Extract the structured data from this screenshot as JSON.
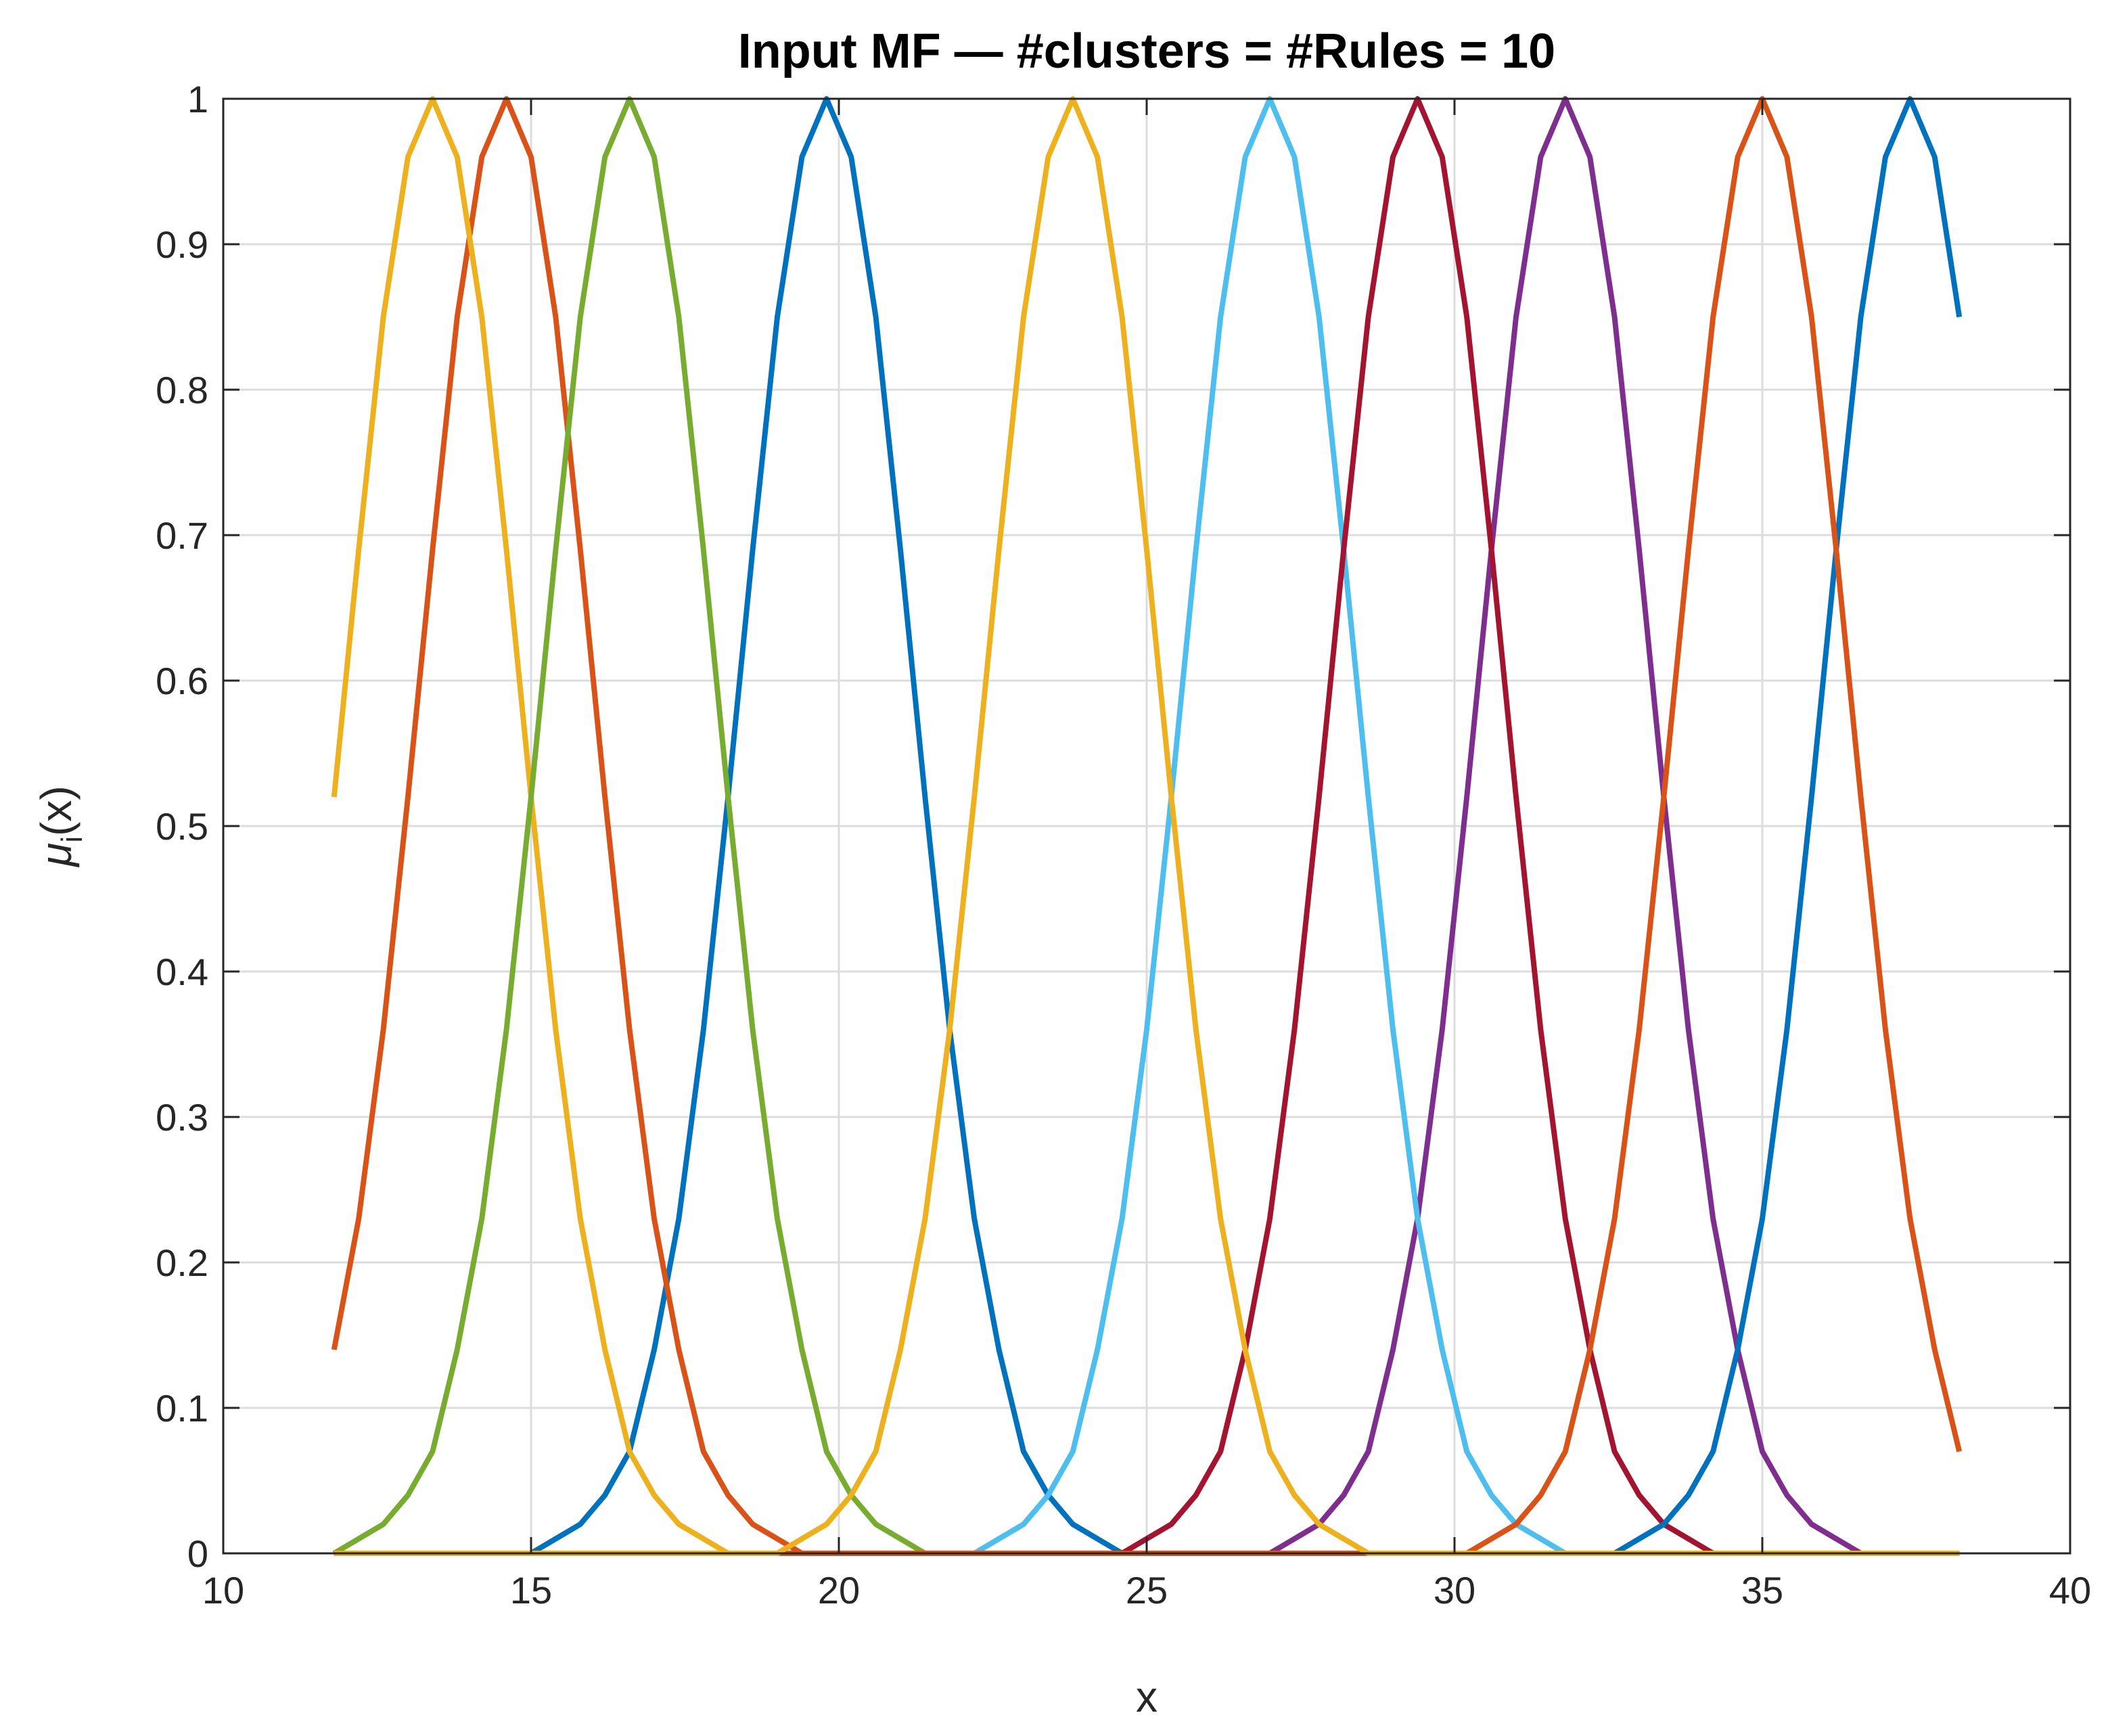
{
  "chart_data": {
    "type": "line",
    "title": "Input MF — #clusters = #Rules = 10",
    "xlabel": "x",
    "ylabel": {
      "symbol": "μ",
      "subscript": "i",
      "rest": "(x)"
    },
    "xlim": [
      10,
      40
    ],
    "xticks": [
      10,
      15,
      20,
      25,
      30,
      35,
      40
    ],
    "ylim": [
      0,
      1
    ],
    "yticks": [
      0,
      0.1,
      0.2,
      0.3,
      0.4,
      0.5,
      0.6,
      0.7,
      0.8,
      0.9,
      1
    ],
    "grid": true,
    "x": [
      11.8,
      12.2,
      12.6,
      13,
      13.4,
      13.8,
      14.2,
      14.6,
      15,
      15.4,
      15.8,
      16.2,
      16.6,
      17,
      17.4,
      17.8,
      18.2,
      18.6,
      19,
      19.4,
      19.8,
      20.2,
      20.6,
      21,
      21.4,
      21.8,
      22.2,
      22.6,
      23,
      23.4,
      23.8,
      24.2,
      24.6,
      25,
      25.4,
      25.8,
      26.2,
      26.6,
      27,
      27.4,
      27.8,
      28.2,
      28.6,
      29,
      29.4,
      29.8,
      30.2,
      30.6,
      31,
      31.4,
      31.8,
      32.2,
      32.6,
      33,
      33.4,
      33.8,
      34.2,
      34.6,
      35,
      35.4,
      35.8,
      36.2,
      36.6,
      37,
      37.4,
      37.8,
      38.2
    ],
    "series": [
      {
        "color": "#0072BD",
        "values": [
          0,
          0,
          0,
          0,
          0,
          0,
          0,
          0,
          0,
          0.01,
          0.02,
          0.04,
          0.07,
          0.14,
          0.23,
          0.36,
          0.52,
          0.69,
          0.85,
          0.96,
          1,
          0.96,
          0.85,
          0.69,
          0.52,
          0.36,
          0.23,
          0.14,
          0.07,
          0.04,
          0.02,
          0.01,
          0,
          0,
          0,
          0,
          0,
          0,
          0,
          0,
          0,
          0,
          0,
          0,
          0,
          0,
          0,
          0,
          0,
          0,
          0,
          0,
          0,
          0,
          0,
          0,
          0,
          0,
          0,
          0,
          0,
          0,
          0,
          0,
          0,
          0,
          0
        ]
      },
      {
        "color": "#D95319",
        "values": [
          0.14,
          0.23,
          0.36,
          0.52,
          0.69,
          0.85,
          0.96,
          1,
          0.96,
          0.85,
          0.69,
          0.52,
          0.36,
          0.23,
          0.14,
          0.07,
          0.04,
          0.02,
          0.01,
          0,
          0,
          0,
          0,
          0,
          0,
          0,
          0,
          0,
          0,
          0,
          0,
          0,
          0,
          0,
          0,
          0,
          0,
          0,
          0,
          0,
          0,
          0,
          0,
          0,
          0,
          0,
          0,
          0,
          0,
          0,
          0,
          0,
          0,
          0,
          0,
          0,
          0,
          0,
          0,
          0,
          0,
          0,
          0,
          0,
          0,
          0,
          0
        ]
      },
      {
        "color": "#EDB120",
        "values": [
          0.52,
          0.69,
          0.85,
          0.96,
          1,
          0.96,
          0.85,
          0.69,
          0.52,
          0.36,
          0.23,
          0.14,
          0.07,
          0.04,
          0.02,
          0.01,
          0,
          0,
          0,
          0,
          0,
          0,
          0,
          0,
          0,
          0,
          0,
          0,
          0,
          0,
          0,
          0,
          0,
          0,
          0,
          0,
          0,
          0,
          0,
          0,
          0,
          0,
          0,
          0,
          0,
          0,
          0,
          0,
          0,
          0,
          0,
          0,
          0,
          0,
          0,
          0,
          0,
          0,
          0,
          0,
          0,
          0,
          0,
          0,
          0,
          0,
          0
        ]
      },
      {
        "color": "#7E2F8E",
        "values": [
          0,
          0,
          0,
          0,
          0,
          0,
          0,
          0,
          0,
          0,
          0,
          0,
          0,
          0,
          0,
          0,
          0,
          0,
          0,
          0,
          0,
          0,
          0,
          0,
          0,
          0,
          0,
          0,
          0,
          0,
          0,
          0,
          0,
          0,
          0,
          0,
          0,
          0,
          0,
          0.01,
          0.02,
          0.04,
          0.07,
          0.14,
          0.23,
          0.36,
          0.52,
          0.69,
          0.85,
          0.96,
          1,
          0.96,
          0.85,
          0.69,
          0.52,
          0.36,
          0.23,
          0.14,
          0.07,
          0.04,
          0.02,
          0.01,
          0,
          0,
          0,
          0,
          0
        ]
      },
      {
        "color": "#77AC30",
        "values": [
          0,
          0.01,
          0.02,
          0.04,
          0.07,
          0.14,
          0.23,
          0.36,
          0.52,
          0.69,
          0.85,
          0.96,
          1,
          0.96,
          0.85,
          0.69,
          0.52,
          0.36,
          0.23,
          0.14,
          0.07,
          0.04,
          0.02,
          0.01,
          0,
          0,
          0,
          0,
          0,
          0,
          0,
          0,
          0,
          0,
          0,
          0,
          0,
          0,
          0,
          0,
          0,
          0,
          0,
          0,
          0,
          0,
          0,
          0,
          0,
          0,
          0,
          0,
          0,
          0,
          0,
          0,
          0,
          0,
          0,
          0,
          0,
          0,
          0,
          0,
          0,
          0,
          0
        ]
      },
      {
        "color": "#4DBEEE",
        "values": [
          0,
          0,
          0,
          0,
          0,
          0,
          0,
          0,
          0,
          0,
          0,
          0,
          0,
          0,
          0,
          0,
          0,
          0,
          0,
          0,
          0,
          0,
          0,
          0,
          0,
          0,
          0,
          0.01,
          0.02,
          0.04,
          0.07,
          0.14,
          0.23,
          0.36,
          0.52,
          0.69,
          0.85,
          0.96,
          1,
          0.96,
          0.85,
          0.69,
          0.52,
          0.36,
          0.23,
          0.14,
          0.07,
          0.04,
          0.02,
          0.01,
          0,
          0,
          0,
          0,
          0,
          0,
          0,
          0,
          0,
          0,
          0,
          0,
          0,
          0,
          0,
          0,
          0
        ]
      },
      {
        "color": "#A2142F",
        "values": [
          0,
          0,
          0,
          0,
          0,
          0,
          0,
          0,
          0,
          0,
          0,
          0,
          0,
          0,
          0,
          0,
          0,
          0,
          0,
          0,
          0,
          0,
          0,
          0,
          0,
          0,
          0,
          0,
          0,
          0,
          0,
          0,
          0,
          0.01,
          0.02,
          0.04,
          0.07,
          0.14,
          0.23,
          0.36,
          0.52,
          0.69,
          0.85,
          0.96,
          1,
          0.96,
          0.85,
          0.69,
          0.52,
          0.36,
          0.23,
          0.14,
          0.07,
          0.04,
          0.02,
          0.01,
          0,
          0,
          0,
          0,
          0,
          0,
          0,
          0,
          0,
          0,
          0
        ]
      },
      {
        "color": "#0072BD",
        "values": [
          0,
          0,
          0,
          0,
          0,
          0,
          0,
          0,
          0,
          0,
          0,
          0,
          0,
          0,
          0,
          0,
          0,
          0,
          0,
          0,
          0,
          0,
          0,
          0,
          0,
          0,
          0,
          0,
          0,
          0,
          0,
          0,
          0,
          0,
          0,
          0,
          0,
          0,
          0,
          0,
          0,
          0,
          0,
          0,
          0,
          0,
          0,
          0,
          0,
          0,
          0,
          0,
          0,
          0.01,
          0.02,
          0.04,
          0.07,
          0.14,
          0.23,
          0.36,
          0.52,
          0.69,
          0.85,
          0.96,
          1,
          0.96,
          0.85
        ]
      },
      {
        "color": "#D95319",
        "values": [
          0,
          0,
          0,
          0,
          0,
          0,
          0,
          0,
          0,
          0,
          0,
          0,
          0,
          0,
          0,
          0,
          0,
          0,
          0,
          0,
          0,
          0,
          0,
          0,
          0,
          0,
          0,
          0,
          0,
          0,
          0,
          0,
          0,
          0,
          0,
          0,
          0,
          0,
          0,
          0,
          0,
          0,
          0,
          0,
          0,
          0,
          0,
          0.01,
          0.02,
          0.04,
          0.07,
          0.14,
          0.23,
          0.36,
          0.52,
          0.69,
          0.85,
          0.96,
          1,
          0.96,
          0.85,
          0.69,
          0.52,
          0.36,
          0.23,
          0.14,
          0.07
        ]
      },
      {
        "color": "#EDB120",
        "values": [
          0,
          0,
          0,
          0,
          0,
          0,
          0,
          0,
          0,
          0,
          0,
          0,
          0,
          0,
          0,
          0,
          0,
          0,
          0,
          0.01,
          0.02,
          0.04,
          0.07,
          0.14,
          0.23,
          0.36,
          0.52,
          0.69,
          0.85,
          0.96,
          1,
          0.96,
          0.85,
          0.69,
          0.52,
          0.36,
          0.23,
          0.14,
          0.07,
          0.04,
          0.02,
          0.01,
          0,
          0,
          0,
          0,
          0,
          0,
          0,
          0,
          0,
          0,
          0,
          0,
          0,
          0,
          0,
          0,
          0,
          0,
          0,
          0,
          0,
          0,
          0,
          0,
          0
        ]
      }
    ]
  }
}
